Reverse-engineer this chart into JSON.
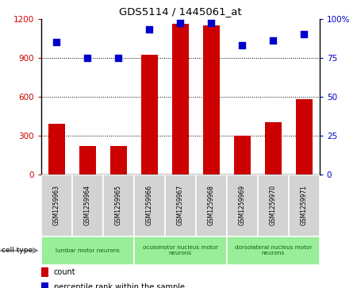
{
  "title": "GDS5114 / 1445061_at",
  "samples": [
    "GSM1259963",
    "GSM1259964",
    "GSM1259965",
    "GSM1259966",
    "GSM1259967",
    "GSM1259968",
    "GSM1259969",
    "GSM1259970",
    "GSM1259971"
  ],
  "counts": [
    390,
    215,
    215,
    920,
    1160,
    1150,
    295,
    400,
    580
  ],
  "percentile_ranks": [
    85,
    75,
    75,
    93,
    97,
    97,
    83,
    86,
    90
  ],
  "ylim_left": [
    0,
    1200
  ],
  "ylim_right": [
    0,
    100
  ],
  "yticks_left": [
    0,
    300,
    600,
    900,
    1200
  ],
  "yticks_right": [
    0,
    25,
    50,
    75,
    100
  ],
  "ytick_labels_right": [
    "0",
    "25",
    "50",
    "75",
    "100%"
  ],
  "cell_groups": [
    {
      "label": "lumbar motor neurons",
      "start": 0,
      "end": 3
    },
    {
      "label": "oculomotor nucleus motor\nneurons",
      "start": 3,
      "end": 6
    },
    {
      "label": "dorsolateral nucleus motor\nneurons",
      "start": 6,
      "end": 9
    }
  ],
  "bar_color": "#cc0000",
  "dot_color": "#0000cc",
  "grid_color": "#000000",
  "cell_group_color": "#99ee99",
  "sample_box_color": "#d3d3d3",
  "cell_group_text_color": "#006600",
  "legend_count_color": "#cc0000",
  "legend_pct_color": "#0000cc"
}
